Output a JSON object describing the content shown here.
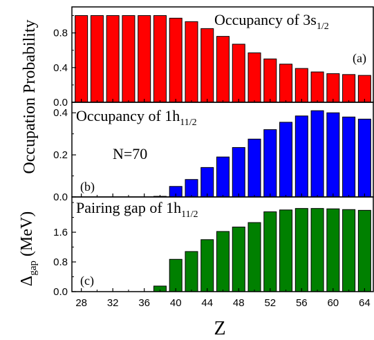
{
  "chart_data": [
    {
      "type": "bar",
      "title": "Occupancy of 3s",
      "title_subscript": "1/2",
      "panel_label": "(a)",
      "color": "#ff0000",
      "x": [
        28,
        30,
        32,
        34,
        36,
        38,
        40,
        42,
        44,
        46,
        48,
        50,
        52,
        54,
        56,
        58,
        60,
        62,
        64
      ],
      "values": [
        1.0,
        1.0,
        1.0,
        1.0,
        1.0,
        1.0,
        0.97,
        0.93,
        0.85,
        0.76,
        0.67,
        0.57,
        0.5,
        0.44,
        0.39,
        0.35,
        0.33,
        0.32,
        0.31
      ],
      "ylim": [
        0,
        1.1
      ],
      "yticks": [
        "0.0",
        "0.4",
        "0.8"
      ],
      "ytick_values": [
        0,
        0.4,
        0.8
      ]
    },
    {
      "type": "bar",
      "title": "Occupancy of 1h",
      "title_subscript": "11/2",
      "panel_label": "(b)",
      "note": "N=70",
      "color": "#0000ff",
      "x": [
        28,
        30,
        32,
        34,
        36,
        38,
        40,
        42,
        44,
        46,
        48,
        50,
        52,
        54,
        56,
        58,
        60,
        62,
        64
      ],
      "values": [
        0,
        0,
        0,
        0,
        0,
        0.003,
        0.05,
        0.083,
        0.14,
        0.19,
        0.235,
        0.275,
        0.32,
        0.355,
        0.385,
        0.41,
        0.4,
        0.38,
        0.37
      ],
      "ylim": [
        0,
        0.45
      ],
      "yticks": [
        "0.0",
        "0.2",
        "0.4"
      ],
      "ytick_values": [
        0,
        0.2,
        0.4
      ]
    },
    {
      "type": "bar",
      "title": "Pairing gap of 1h",
      "title_subscript": "11/2",
      "panel_label": "(c)",
      "color": "#008000",
      "x": [
        28,
        30,
        32,
        34,
        36,
        38,
        40,
        42,
        44,
        46,
        48,
        50,
        52,
        54,
        56,
        58,
        60,
        62,
        64
      ],
      "values": [
        0,
        0,
        0,
        0,
        0,
        0.15,
        0.87,
        1.08,
        1.4,
        1.62,
        1.74,
        1.86,
        2.15,
        2.2,
        2.24,
        2.24,
        2.23,
        2.21,
        2.19
      ],
      "ylim": [
        0,
        2.55
      ],
      "yticks": [
        "0.0",
        "0.8",
        "1.6"
      ],
      "ytick_values": [
        0,
        0.8,
        1.6
      ]
    }
  ],
  "axes": {
    "xlabel": "Z",
    "xticks": [
      "28",
      "32",
      "36",
      "40",
      "44",
      "48",
      "52",
      "56",
      "60",
      "64"
    ],
    "xtick_values": [
      28,
      32,
      36,
      40,
      44,
      48,
      52,
      56,
      60,
      64
    ],
    "ylabel_top": "Occupation Probability",
    "ylabel_bottom_main": "Δ",
    "ylabel_bottom_sub": "gap",
    "ylabel_bottom_unit": "(MeV)"
  }
}
